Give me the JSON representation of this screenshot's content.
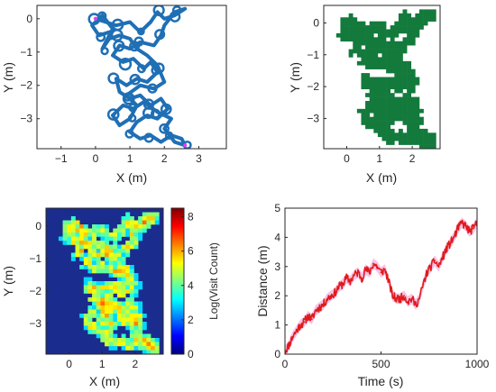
{
  "chart_data": [
    {
      "type": "scatter",
      "xlabel": "X (m)",
      "ylabel": "Y (m)",
      "xlim": [
        -1.7,
        3.8
      ],
      "ylim": [
        -3.9,
        0.4
      ],
      "xticks": [
        -1,
        0,
        1,
        2,
        3
      ],
      "yticks": [
        0,
        -1,
        -2,
        -3
      ],
      "grid": false,
      "colors": {
        "path": "#1f6fb5",
        "marker": "#e040fb"
      },
      "path": [
        [
          0.0,
          0.0
        ],
        [
          0.3,
          -0.1
        ],
        [
          0.6,
          -0.2
        ],
        [
          1.0,
          -0.1
        ],
        [
          1.3,
          -0.4
        ],
        [
          1.6,
          -0.1
        ],
        [
          1.8,
          0.2
        ],
        [
          2.0,
          0.0
        ],
        [
          2.3,
          0.1
        ],
        [
          2.6,
          0.3
        ],
        [
          2.3,
          0.2
        ],
        [
          2.0,
          -0.2
        ],
        [
          1.9,
          -0.5
        ],
        [
          1.7,
          -0.8
        ],
        [
          1.3,
          -0.7
        ],
        [
          1.0,
          -0.9
        ],
        [
          0.7,
          -0.8
        ],
        [
          0.5,
          -1.1
        ],
        [
          0.8,
          -1.3
        ],
        [
          1.1,
          -1.2
        ],
        [
          1.4,
          -1.5
        ],
        [
          1.6,
          -1.3
        ],
        [
          1.8,
          -1.6
        ],
        [
          1.5,
          -1.9
        ],
        [
          1.2,
          -1.8
        ],
        [
          0.9,
          -2.0
        ],
        [
          0.6,
          -1.8
        ],
        [
          0.7,
          -2.2
        ],
        [
          1.0,
          -2.4
        ],
        [
          1.3,
          -2.3
        ],
        [
          1.6,
          -2.6
        ],
        [
          1.9,
          -2.4
        ],
        [
          2.1,
          -2.7
        ],
        [
          1.8,
          -3.0
        ],
        [
          1.5,
          -2.9
        ],
        [
          1.2,
          -3.1
        ],
        [
          1.0,
          -3.4
        ],
        [
          1.3,
          -3.6
        ],
        [
          1.6,
          -3.5
        ],
        [
          1.9,
          -3.7
        ],
        [
          2.2,
          -3.5
        ],
        [
          2.5,
          -3.6
        ],
        [
          2.6,
          -3.8
        ],
        [
          2.3,
          -3.7
        ],
        [
          2.0,
          -3.3
        ],
        [
          2.2,
          -3.0
        ],
        [
          1.8,
          -2.8
        ],
        [
          1.4,
          -2.5
        ],
        [
          1.1,
          -2.7
        ],
        [
          0.8,
          -2.6
        ],
        [
          0.5,
          -2.9
        ],
        [
          0.7,
          -3.2
        ],
        [
          1.0,
          -3.0
        ],
        [
          1.2,
          -2.6
        ],
        [
          0.9,
          -2.3
        ],
        [
          1.3,
          -2.0
        ],
        [
          1.7,
          -2.1
        ],
        [
          2.0,
          -1.9
        ],
        [
          1.8,
          -1.4
        ],
        [
          1.5,
          -1.1
        ],
        [
          1.2,
          -0.9
        ],
        [
          1.0,
          -0.6
        ],
        [
          0.7,
          -0.5
        ],
        [
          0.4,
          -0.6
        ],
        [
          0.2,
          -0.9
        ],
        [
          0.5,
          -0.3
        ],
        [
          0.2,
          0.1
        ],
        [
          -0.1,
          -0.2
        ],
        [
          0.1,
          -0.5
        ],
        [
          0.4,
          -0.4
        ]
      ],
      "markers": [
        [
          0.0,
          0.0
        ],
        [
          2.6,
          -3.8
        ]
      ]
    },
    {
      "type": "heatmap",
      "xlabel": "X (m)",
      "ylabel": "Y (m)",
      "xlim": [
        -0.7,
        2.85
      ],
      "ylim": [
        -3.95,
        0.55
      ],
      "xticks": [
        0,
        1,
        2
      ],
      "yticks": [
        0,
        -1,
        -2,
        -3
      ],
      "colors": {
        "occupied": "#137a3c"
      },
      "grid": {
        "nx": 28,
        "ny": 36
      }
    },
    {
      "type": "heatmap",
      "xlabel": "X (m)",
      "ylabel": "Y (m)",
      "xlim": [
        -0.7,
        2.85
      ],
      "ylim": [
        -3.95,
        0.55
      ],
      "xticks": [
        0,
        1,
        2
      ],
      "yticks": [
        0,
        -1,
        -2,
        -3
      ],
      "colorbar": {
        "label": "Log(Visit Count)",
        "range": [
          0,
          8.5
        ],
        "ticks": [
          0,
          2,
          4,
          6,
          8
        ]
      },
      "colormap": "jet",
      "background": "#1b2c8f"
    },
    {
      "type": "line",
      "xlabel": "Time (s)",
      "ylabel": "Distance (m)",
      "xlim": [
        0,
        1000
      ],
      "ylim": [
        0,
        5
      ],
      "xticks": [
        0,
        500,
        1000
      ],
      "yticks": [
        0,
        1,
        2,
        3,
        4,
        5
      ],
      "grid": false,
      "colors": {
        "line": "#e01b1b",
        "band": "#f6b3df"
      },
      "series": [
        {
          "x": [
            0,
            20,
            40,
            60,
            80,
            100,
            120,
            140,
            160,
            180,
            200,
            220,
            240,
            260,
            280,
            300,
            320,
            340,
            360,
            380,
            400,
            420,
            440,
            460,
            480,
            500,
            520,
            540,
            560,
            580,
            600,
            620,
            640,
            660,
            680,
            700,
            720,
            740,
            760,
            780,
            800,
            820,
            840,
            860,
            880,
            900,
            920,
            940,
            960,
            980,
            1000
          ],
          "values": [
            0.1,
            0.3,
            0.6,
            0.8,
            1.0,
            1.1,
            1.3,
            1.2,
            1.5,
            1.6,
            1.7,
            1.9,
            2.0,
            2.1,
            2.3,
            2.4,
            2.6,
            2.5,
            2.7,
            2.8,
            2.6,
            2.9,
            2.8,
            3.1,
            3.0,
            2.8,
            2.9,
            2.5,
            2.0,
            1.9,
            1.9,
            2.0,
            1.8,
            1.9,
            1.7,
            1.9,
            2.4,
            2.8,
            3.0,
            3.2,
            3.0,
            3.3,
            3.6,
            3.8,
            4.0,
            4.3,
            4.5,
            4.4,
            4.2,
            4.3,
            4.5
          ]
        }
      ]
    }
  ]
}
